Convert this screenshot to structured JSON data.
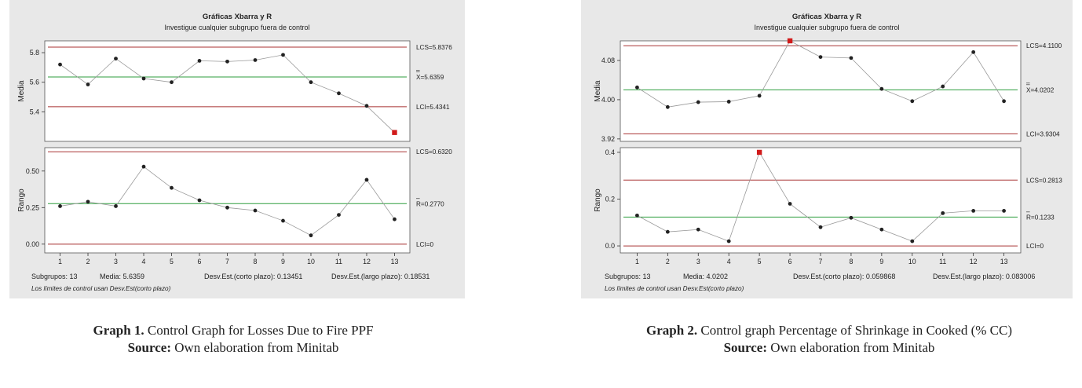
{
  "chart_data": [
    {
      "type": "control",
      "title": "Gráficas Xbarra y R",
      "subtitle": "Investigue cualquier subgrupo fuera de control",
      "categories": [
        1,
        2,
        3,
        4,
        5,
        6,
        7,
        8,
        9,
        10,
        11,
        12,
        13
      ],
      "xbar": {
        "ylabel": "Media",
        "ylim": [
          5.2,
          5.88
        ],
        "yticks": [
          5.4,
          5.6,
          5.8
        ],
        "ytick_labels": [
          "5.4",
          "5.6",
          "5.8"
        ],
        "values": [
          5.72,
          5.585,
          5.76,
          5.625,
          5.6,
          5.745,
          5.74,
          5.75,
          5.785,
          5.6,
          5.525,
          5.44,
          5.26
        ],
        "out_of_control": [
          13
        ],
        "ucl": 5.8376,
        "center": 5.6359,
        "lcl": 5.4341,
        "ucl_label": "LCS=5.8376",
        "center_label": "X=5.6359",
        "lcl_label": "LCI=5.4341"
      },
      "range": {
        "ylabel": "Rango",
        "ylim": [
          -0.06,
          0.66
        ],
        "yticks": [
          0.0,
          0.25,
          0.5
        ],
        "ytick_labels": [
          "0.00",
          "0.25",
          "0.50"
        ],
        "values": [
          0.26,
          0.29,
          0.26,
          0.53,
          0.385,
          0.3,
          0.25,
          0.23,
          0.16,
          0.06,
          0.2,
          0.44,
          0.17
        ],
        "out_of_control": [],
        "ucl": 0.632,
        "center": 0.277,
        "lcl": 0.0,
        "ucl_label": "LCS=0.6320",
        "center_label": "R=0.2770",
        "lcl_label": "LCI=0"
      },
      "footer": {
        "subgroups": "Subgrupos: 13",
        "mean": "Media: 5.6359",
        "sd_short": "Desv.Est.(corto plazo): 0.13451",
        "sd_long": "Desv.Est.(largo plazo): 0.18531",
        "note": "Los límites de control usan Desv.Est(corto plazo)"
      }
    },
    {
      "type": "control",
      "title": "Gráficas Xbarra y R",
      "subtitle": "Investigue cualquier subgrupo fuera de control",
      "categories": [
        1,
        2,
        3,
        4,
        5,
        6,
        7,
        8,
        9,
        10,
        11,
        12,
        13
      ],
      "xbar": {
        "ylabel": "Media",
        "ylim": [
          3.915,
          4.12
        ],
        "yticks": [
          3.92,
          4.0,
          4.08
        ],
        "ytick_labels": [
          "3.92",
          "4.00",
          "4.08"
        ],
        "values": [
          4.025,
          3.985,
          3.995,
          3.996,
          4.008,
          4.12,
          4.087,
          4.085,
          4.022,
          3.997,
          4.027,
          4.097,
          3.997
        ],
        "out_of_control": [
          6
        ],
        "ucl": 4.11,
        "center": 4.0202,
        "lcl": 3.9304,
        "ucl_label": "LCS=4.1100",
        "center_label": "X=4.0202",
        "lcl_label": "LCI=3.9304"
      },
      "range": {
        "ylabel": "Rango",
        "ylim": [
          -0.03,
          0.42
        ],
        "yticks": [
          0.0,
          0.2,
          0.4
        ],
        "ytick_labels": [
          "0.0",
          "0.2",
          "0.4"
        ],
        "values": [
          0.13,
          0.06,
          0.07,
          0.02,
          0.4,
          0.18,
          0.08,
          0.12,
          0.07,
          0.02,
          0.14,
          0.15,
          0.15
        ],
        "out_of_control": [
          5
        ],
        "ucl": 0.2813,
        "center": 0.1233,
        "lcl": 0.0,
        "ucl_label": "LCS=0.2813",
        "center_label": "R=0.1233",
        "lcl_label": "LCI=0"
      },
      "footer": {
        "subgroups": "Subgrupos: 13",
        "mean": "Media: 4.0202",
        "sd_short": "Desv.Est.(corto plazo): 0.059868",
        "sd_long": "Desv.Est.(largo plazo): 0.083006",
        "note": "Los límites de control usan Desv.Est(corto plazo)"
      }
    }
  ],
  "captions": [
    {
      "line1_bold": "Graph 1.",
      "line1_text": "Control Graph for Losses Due to Fire PPF",
      "line2_bold": "Source:",
      "line2_text": "Own elaboration from Minitab"
    },
    {
      "line1_bold": "Graph 2.",
      "line1_text": "Control graph Percentage of Shrinkage in Cooked (% CC)",
      "line3_bold": "Source:",
      "line3_text": "Own elaboration from Minitab"
    }
  ],
  "colors": {
    "panel_bg": "#e8e8e8",
    "plot_bg": "#ffffff",
    "limit_line": "#a83232",
    "center_line": "#2e9e3e",
    "data_line": "#999999",
    "point": "#222222",
    "out_point": "#d11a1a"
  }
}
